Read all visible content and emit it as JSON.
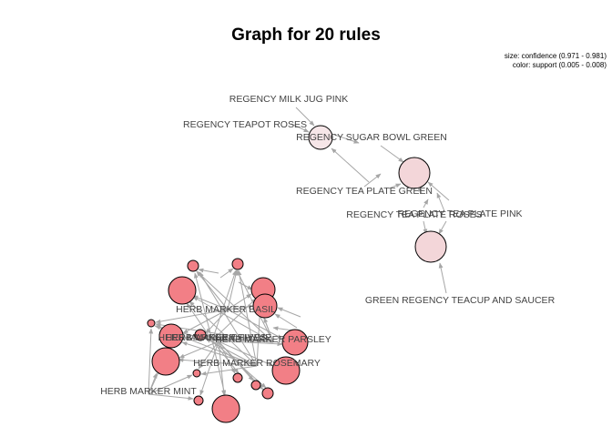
{
  "title": "Graph for 20 rules",
  "legend": {
    "size": "size: confidence (0.971 - 0.981)",
    "color": "color: support (0.005 - 0.008)"
  },
  "colors": {
    "background": "#ffffff",
    "edge": "#a6a6a6",
    "node_stroke": "#000000",
    "label": "#444444",
    "support_low": "#f7e9ea",
    "support_high": "#f47f86"
  },
  "items": [
    "REGENCY MILK JUG PINK",
    "REGENCY TEAPOT ROSES",
    "REGENCY SUGAR BOWL GREEN",
    "REGENCY TEA PLATE GREEN",
    "REGENCY TEA PLATE ROSES",
    "REGENCY TEA PLATE PINK",
    "GREEN REGENCY TEACUP AND SAUCER",
    "HERB MARKER BASIL",
    "HERB MARKER CHIVES",
    "HERB MARKER THYME",
    "HERB MARKER PARSLEY",
    "HERB MARKER ROSEMARY",
    "HERB MARKER MINT"
  ]
}
